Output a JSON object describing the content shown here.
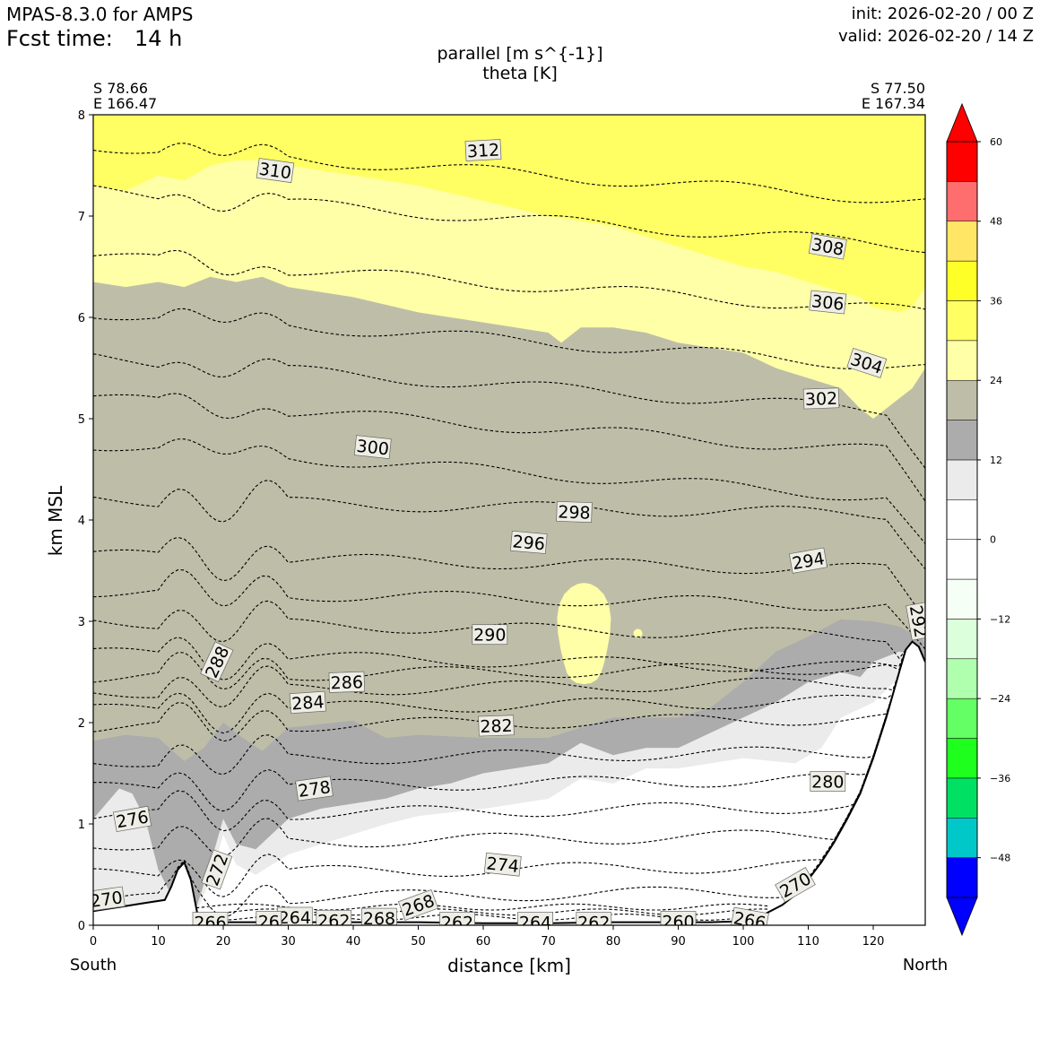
{
  "header": {
    "model": "MPAS-8.3.0 for AMPS",
    "fcst_label": "Fcst time:",
    "fcst_value": "14 h",
    "init": "init: 2026-02-20 / 00 Z",
    "valid": "valid: 2026-02-20 / 14 Z"
  },
  "chart_data": {
    "type": "contour",
    "title_line1": "parallel [m s^{-1}]",
    "title_line2": "theta [K]",
    "xlabel": "distance [km]",
    "ylabel": "km MSL",
    "xlim": [
      0,
      128
    ],
    "ylim": [
      0,
      8
    ],
    "x_ticks": [
      0,
      10,
      20,
      30,
      40,
      50,
      60,
      70,
      80,
      90,
      100,
      110,
      120
    ],
    "y_ticks": [
      0,
      1,
      2,
      3,
      4,
      5,
      6,
      7,
      8
    ],
    "left_end": {
      "lat": "S 78.66",
      "lon": "E 166.47",
      "dir": "South"
    },
    "right_end": {
      "lat": "S 77.50",
      "lon": "E 167.34",
      "dir": "North"
    },
    "colorbar": {
      "levels": [
        -54,
        -48,
        -42,
        -36,
        -30,
        -24,
        -18,
        -12,
        -6,
        0,
        6,
        12,
        18,
        24,
        30,
        36,
        42,
        48,
        54,
        60
      ],
      "colors": [
        "#0000ff",
        "#00c8c8",
        "#00e164",
        "#1eff1e",
        "#64ff64",
        "#afffaf",
        "#dcffdc",
        "#f5fff5",
        "#ffffff",
        "#ffffff",
        "#ebebeb",
        "#acacac",
        "#bebea8",
        "#ffffa8",
        "#ffff64",
        "#ffff28",
        "#ffe664",
        "#ff6e6e",
        "#ff0000"
      ],
      "over_color": "#ff0000",
      "under_color": "#0000ff",
      "tick_values": [
        60,
        48,
        36,
        24,
        12,
        0,
        -12,
        -24,
        -36,
        -48
      ],
      "tick_labels": [
        "60",
        "48",
        "36",
        "24",
        "12",
        "0",
        "−12",
        "−24",
        "−36",
        "−48"
      ]
    },
    "terrain": {
      "x": [
        0,
        4,
        8,
        11,
        12,
        13,
        14,
        15,
        16,
        17,
        18,
        20,
        30,
        40,
        50,
        60,
        70,
        80,
        90,
        95,
        100,
        103,
        106,
        108,
        110,
        112,
        114,
        116,
        118,
        120,
        122,
        124,
        125,
        126,
        127,
        128
      ],
      "z": [
        0.14,
        0.18,
        0.22,
        0.25,
        0.38,
        0.55,
        0.62,
        0.45,
        0.12,
        0.06,
        0.04,
        0.03,
        0.03,
        0.03,
        0.03,
        0.02,
        0.02,
        0.03,
        0.03,
        0.03,
        0.04,
        0.1,
        0.2,
        0.3,
        0.45,
        0.62,
        0.82,
        1.05,
        1.3,
        1.65,
        2.05,
        2.5,
        2.72,
        2.8,
        2.75,
        2.6
      ]
    },
    "fill_regions": [
      {
        "value_range": "18-24",
        "color": "#bebea8",
        "bottom": {
          "x": [
            0,
            128
          ],
          "z": [
            0,
            0
          ]
        },
        "top": {
          "x": [
            0,
            5,
            10,
            14,
            18,
            22,
            26,
            30,
            40,
            50,
            60,
            70,
            72,
            75,
            80,
            85,
            90,
            95,
            100,
            105,
            110,
            115,
            118,
            120,
            124,
            126,
            128
          ],
          "z": [
            6.35,
            6.3,
            6.35,
            6.3,
            6.4,
            6.35,
            6.4,
            6.3,
            6.2,
            6.05,
            5.95,
            5.85,
            5.75,
            5.9,
            5.9,
            5.85,
            5.75,
            5.7,
            5.65,
            5.5,
            5.4,
            5.3,
            5.1,
            5.0,
            5.2,
            5.3,
            5.5
          ]
        }
      },
      {
        "value_range": "24-30",
        "color": "#ffffa8",
        "bottom_follows": "18-24 top",
        "top": {
          "x": [
            0,
            5,
            10,
            14,
            18,
            22,
            26,
            30,
            40,
            50,
            60,
            70,
            75,
            80,
            85,
            90,
            95,
            100,
            105,
            110,
            115,
            118,
            120,
            124,
            126,
            128
          ],
          "z": [
            7.3,
            7.25,
            7.4,
            7.35,
            7.5,
            7.55,
            7.55,
            7.5,
            7.4,
            7.3,
            7.15,
            7.0,
            6.95,
            6.9,
            6.8,
            6.7,
            6.6,
            6.5,
            6.45,
            6.35,
            6.25,
            6.2,
            6.1,
            6.05,
            6.1,
            6.3
          ]
        }
      },
      {
        "value_range": "30-36",
        "color": "#ffff64",
        "region": "above 24-30 top to 8 km"
      },
      {
        "value_range": "12-18",
        "color": "#acacac",
        "region": "low-level band 0.3-2.0 km South to 3.0 km North"
      },
      {
        "value_range": "6-12",
        "color": "#ebebeb",
        "region": "band below 12-18"
      },
      {
        "value_range": "24-30",
        "color": "#ffffa8",
        "region": "isolated blob near x=75 km, z=2.9 km"
      }
    ],
    "theta_contours_K": [
      260,
      262,
      264,
      266,
      268,
      270,
      272,
      274,
      276,
      278,
      280,
      282,
      284,
      286,
      288,
      290,
      292,
      294,
      296,
      298,
      300,
      302,
      304,
      306,
      308,
      310,
      312
    ],
    "theta_labels": [
      {
        "text": "312",
        "x": 60,
        "z": 7.65,
        "rot": -3
      },
      {
        "text": "310",
        "x": 28,
        "z": 7.45,
        "rot": 8
      },
      {
        "text": "308",
        "x": 113,
        "z": 6.7,
        "rot": 10
      },
      {
        "text": "306",
        "x": 113,
        "z": 6.15,
        "rot": 6
      },
      {
        "text": "304",
        "x": 119,
        "z": 5.55,
        "rot": 18
      },
      {
        "text": "302",
        "x": 112,
        "z": 5.2,
        "rot": -2
      },
      {
        "text": "300",
        "x": 43,
        "z": 4.72,
        "rot": 6
      },
      {
        "text": "298",
        "x": 74,
        "z": 4.08,
        "rot": 2
      },
      {
        "text": "296",
        "x": 67,
        "z": 3.78,
        "rot": 5
      },
      {
        "text": "294",
        "x": 110,
        "z": 3.6,
        "rot": -10
      },
      {
        "text": "292",
        "x": 127,
        "z": 3.0,
        "rot": 80
      },
      {
        "text": "290",
        "x": 61,
        "z": 2.87,
        "rot": 0
      },
      {
        "text": "288",
        "x": 19,
        "z": 2.6,
        "rot": -65
      },
      {
        "text": "286",
        "x": 39,
        "z": 2.4,
        "rot": -2
      },
      {
        "text": "284",
        "x": 33,
        "z": 2.2,
        "rot": -4
      },
      {
        "text": "282",
        "x": 62,
        "z": 1.97,
        "rot": -2
      },
      {
        "text": "280",
        "x": 113,
        "z": 1.42,
        "rot": 0
      },
      {
        "text": "278",
        "x": 34,
        "z": 1.35,
        "rot": -8
      },
      {
        "text": "276",
        "x": 6,
        "z": 1.05,
        "rot": -10
      },
      {
        "text": "274",
        "x": 63,
        "z": 0.6,
        "rot": 6
      },
      {
        "text": "272",
        "x": 19,
        "z": 0.55,
        "rot": -70
      },
      {
        "text": "270",
        "x": 2,
        "z": 0.26,
        "rot": -8
      },
      {
        "text": "270",
        "x": 108,
        "z": 0.4,
        "rot": -30
      },
      {
        "text": "268",
        "x": 50,
        "z": 0.2,
        "rot": -20
      },
      {
        "text": "268",
        "x": 44,
        "z": 0.07,
        "rot": 0
      },
      {
        "text": "266",
        "x": 18,
        "z": 0.03,
        "rot": 0
      },
      {
        "text": "266",
        "x": 101,
        "z": 0.05,
        "rot": 10
      },
      {
        "text": "264",
        "x": 31,
        "z": 0.08,
        "rot": 0
      },
      {
        "text": "264",
        "x": 68,
        "z": 0.03,
        "rot": 0
      },
      {
        "text": "262",
        "x": 37,
        "z": 0.05,
        "rot": 0
      },
      {
        "text": "262",
        "x": 56,
        "z": 0.03,
        "rot": 0
      },
      {
        "text": "262",
        "x": 77,
        "z": 0.03,
        "rot": 0
      },
      {
        "text": "260",
        "x": 90,
        "z": 0.04,
        "rot": 0
      },
      {
        "text": "26",
        "x": 27,
        "z": 0.04,
        "rot": 0
      }
    ]
  }
}
